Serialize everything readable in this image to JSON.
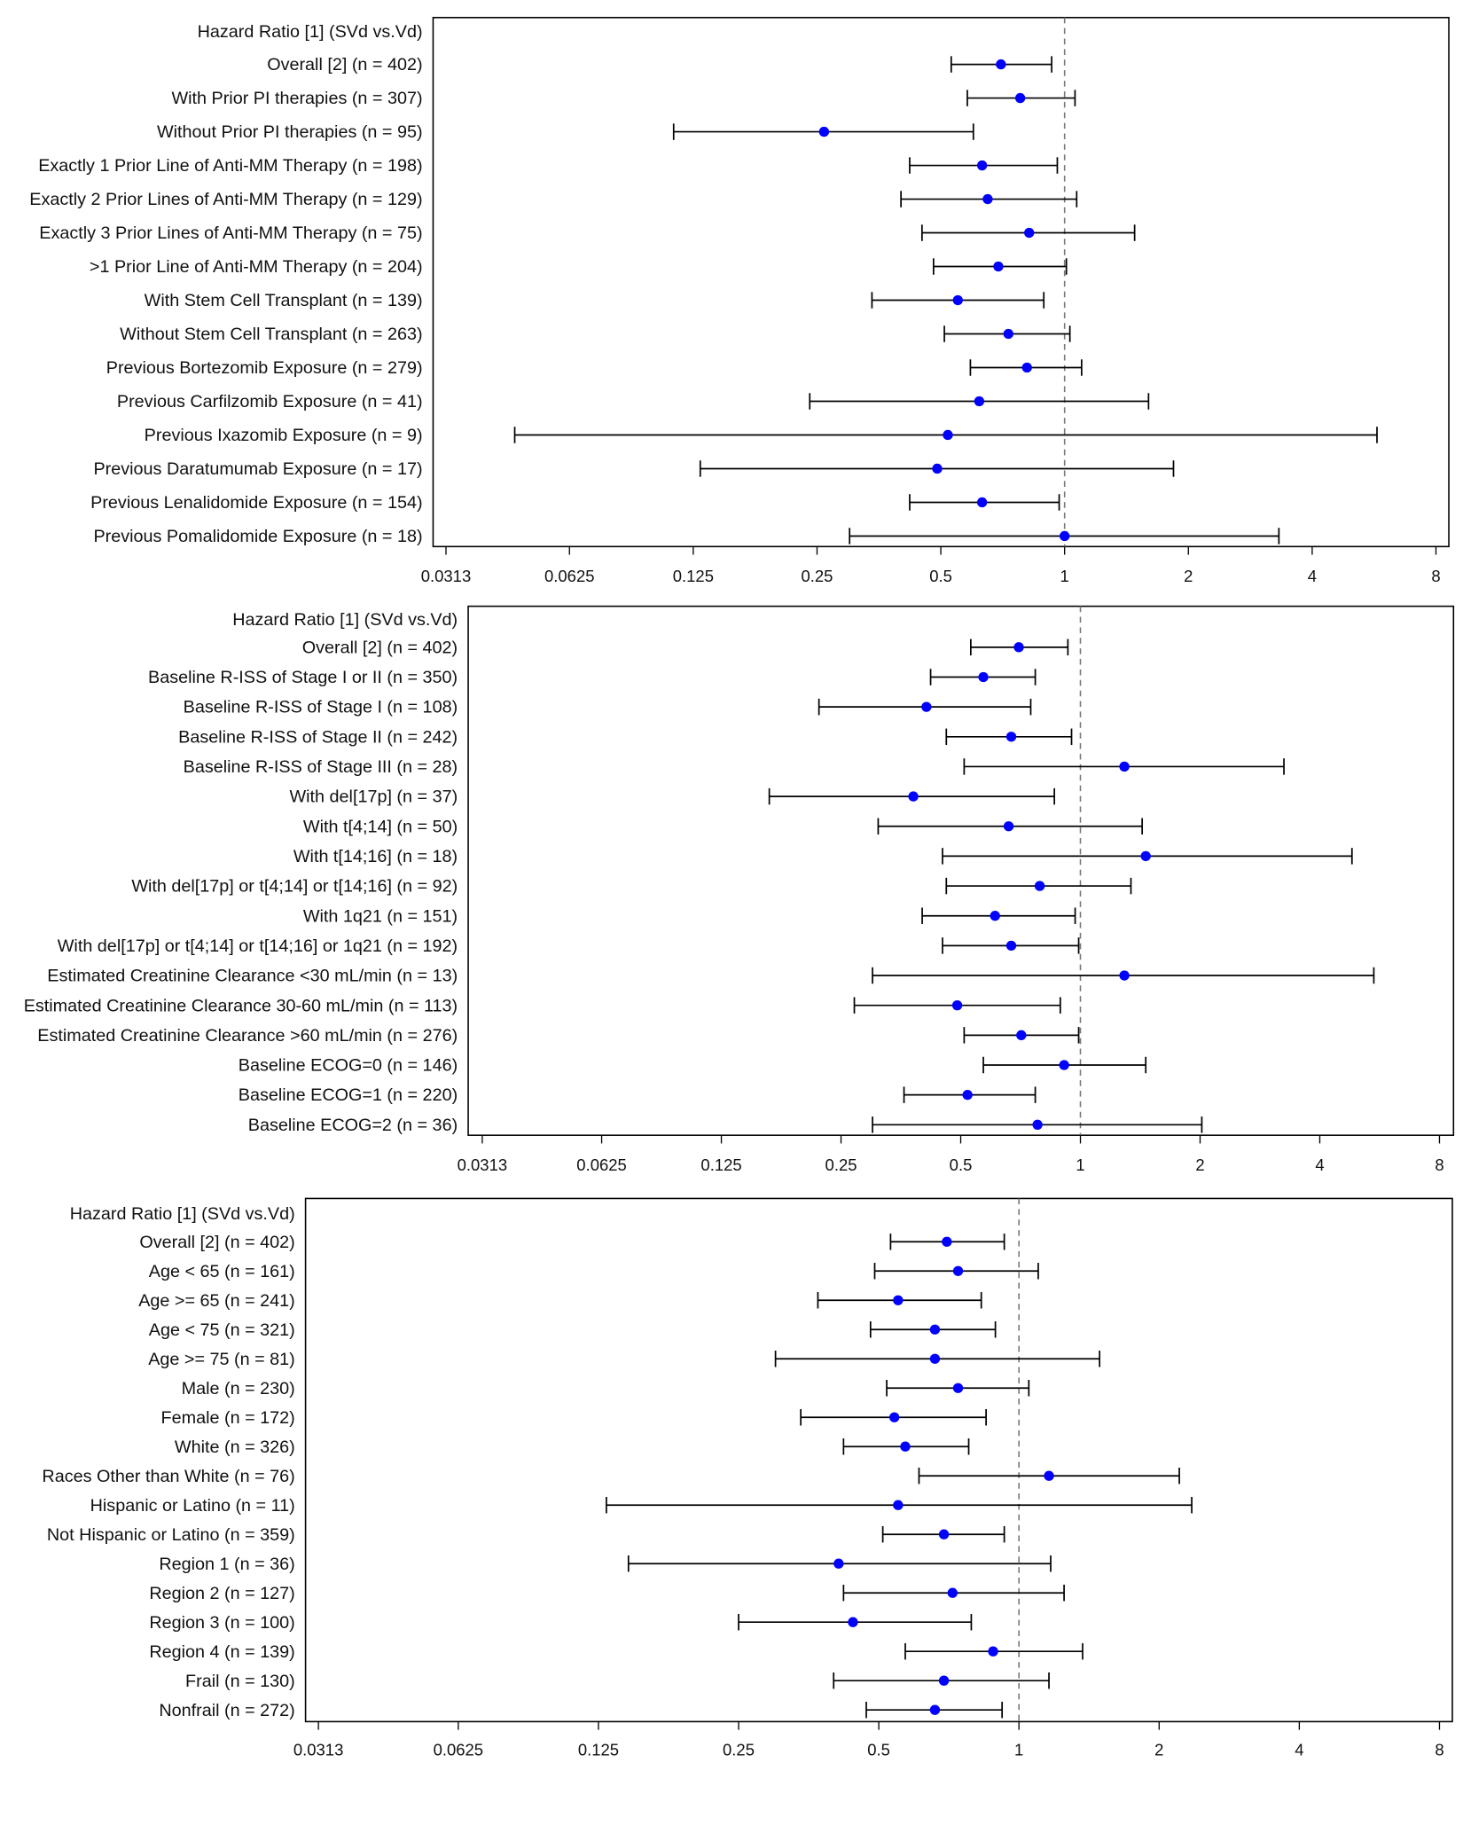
{
  "colors": {
    "point": "#0000ff",
    "whisker": "#000000",
    "reference_line": "#777777"
  },
  "chart_data": [
    {
      "type": "forest",
      "header": "Hazard Ratio [1] (SVd vs.Vd)",
      "x_scale": "log2",
      "xlim": [
        0.0313,
        8
      ],
      "x_ticks": [
        "0.0313",
        "0.0625",
        "0.125",
        "0.25",
        "0.5",
        "1",
        "2",
        "4",
        "8"
      ],
      "reference_line": 1,
      "rows": [
        {
          "label": "Overall [2] (n = 402)",
          "hr": 0.7,
          "lo": 0.53,
          "hi": 0.93
        },
        {
          "label": "With Prior PI therapies (n = 307)",
          "hr": 0.78,
          "lo": 0.58,
          "hi": 1.06
        },
        {
          "label": "Without Prior PI therapies (n = 95)",
          "hr": 0.26,
          "lo": 0.112,
          "hi": 0.6
        },
        {
          "label": "Exactly 1 Prior Line of Anti-MM Therapy (n = 198)",
          "hr": 0.63,
          "lo": 0.42,
          "hi": 0.96
        },
        {
          "label": "Exactly 2 Prior Lines of Anti-MM Therapy (n = 129)",
          "hr": 0.65,
          "lo": 0.4,
          "hi": 1.07
        },
        {
          "label": "Exactly 3 Prior Lines of Anti-MM Therapy (n = 75)",
          "hr": 0.82,
          "lo": 0.45,
          "hi": 1.48
        },
        {
          "label": ">1 Prior Line of Anti-MM Therapy (n = 204)",
          "hr": 0.69,
          "lo": 0.48,
          "hi": 1.01
        },
        {
          "label": "With Stem Cell Transplant (n = 139)",
          "hr": 0.55,
          "lo": 0.34,
          "hi": 0.89
        },
        {
          "label": "Without Stem Cell Transplant (n = 263)",
          "hr": 0.73,
          "lo": 0.51,
          "hi": 1.03
        },
        {
          "label": "Previous Bortezomib Exposure  (n = 279)",
          "hr": 0.81,
          "lo": 0.59,
          "hi": 1.1
        },
        {
          "label": "Previous Carfilzomib Exposure (n = 41)",
          "hr": 0.62,
          "lo": 0.24,
          "hi": 1.6
        },
        {
          "label": "Previous Ixazomib Exposure (n = 9)",
          "hr": 0.52,
          "lo": 0.046,
          "hi": 5.75
        },
        {
          "label": "Previous Daratumumab Exposure (n = 17)",
          "hr": 0.49,
          "lo": 0.13,
          "hi": 1.84
        },
        {
          "label": "Previous Lenalidomide Exposure (n = 154)",
          "hr": 0.63,
          "lo": 0.42,
          "hi": 0.97
        },
        {
          "label": "Previous Pomalidomide Exposure (n = 18)",
          "hr": 1.0,
          "lo": 0.3,
          "hi": 3.32
        }
      ]
    },
    {
      "type": "forest",
      "header": "Hazard Ratio [1] (SVd vs.Vd)",
      "x_scale": "log2",
      "xlim": [
        0.0313,
        8
      ],
      "x_ticks": [
        "0.0313",
        "0.0625",
        "0.125",
        "0.25",
        "0.5",
        "1",
        "2",
        "4",
        "8"
      ],
      "reference_line": 1,
      "rows": [
        {
          "label": "Overall [2] (n = 402)",
          "hr": 0.7,
          "lo": 0.53,
          "hi": 0.93
        },
        {
          "label": "Baseline R-ISS of Stage I or II (n = 350)",
          "hr": 0.57,
          "lo": 0.42,
          "hi": 0.77
        },
        {
          "label": "Baseline R-ISS of Stage I (n = 108)",
          "hr": 0.41,
          "lo": 0.22,
          "hi": 0.75
        },
        {
          "label": "Baseline R-ISS of Stage II (n = 242)",
          "hr": 0.67,
          "lo": 0.46,
          "hi": 0.95
        },
        {
          "label": "Baseline R-ISS of Stage III (n = 28)",
          "hr": 1.29,
          "lo": 0.51,
          "hi": 3.25
        },
        {
          "label": "With del[17p]  (n = 37)",
          "hr": 0.38,
          "lo": 0.165,
          "hi": 0.86
        },
        {
          "label": "With t[4;14]  (n = 50)",
          "hr": 0.66,
          "lo": 0.31,
          "hi": 1.43
        },
        {
          "label": "With t[14;16] (n = 18)",
          "hr": 1.46,
          "lo": 0.45,
          "hi": 4.82
        },
        {
          "label": "With del[17p] or t[4;14] or t[14;16] (n = 92)",
          "hr": 0.79,
          "lo": 0.46,
          "hi": 1.34
        },
        {
          "label": "With 1q21 (n = 151)",
          "hr": 0.61,
          "lo": 0.4,
          "hi": 0.97
        },
        {
          "label": "With del[17p] or t[4;14] or t[14;16] or 1q21 (n = 192)",
          "hr": 0.67,
          "lo": 0.45,
          "hi": 0.99
        },
        {
          "label": "Estimated Creatinine Clearance <30 mL/min (n = 13)",
          "hr": 1.29,
          "lo": 0.3,
          "hi": 5.47
        },
        {
          "label": "Estimated Creatinine Clearance 30-60 mL/min (n = 113)",
          "hr": 0.49,
          "lo": 0.27,
          "hi": 0.89
        },
        {
          "label": "Estimated Creatinine Clearance >60 mL/min (n = 276)",
          "hr": 0.71,
          "lo": 0.51,
          "hi": 0.99
        },
        {
          "label": "Baseline ECOG=0 (n = 146)",
          "hr": 0.91,
          "lo": 0.57,
          "hi": 1.46
        },
        {
          "label": "Baseline ECOG=1 (n = 220)",
          "hr": 0.52,
          "lo": 0.36,
          "hi": 0.77
        },
        {
          "label": "Baseline ECOG=2 (n = 36)",
          "hr": 0.78,
          "lo": 0.3,
          "hi": 2.02
        }
      ]
    },
    {
      "type": "forest",
      "header": "Hazard Ratio [1] (SVd vs.Vd)",
      "x_scale": "log2",
      "xlim": [
        0.0313,
        8
      ],
      "x_ticks": [
        "0.0313",
        "0.0625",
        "0.125",
        "0.25",
        "0.5",
        "1",
        "2",
        "4",
        "8"
      ],
      "reference_line": 1,
      "rows": [
        {
          "label": "Overall [2] (n = 402)",
          "hr": 0.7,
          "lo": 0.53,
          "hi": 0.93
        },
        {
          "label": "Age < 65 (n = 161)",
          "hr": 0.74,
          "lo": 0.49,
          "hi": 1.1
        },
        {
          "label": "Age >= 65 (n = 241)",
          "hr": 0.55,
          "lo": 0.37,
          "hi": 0.83
        },
        {
          "label": "Age < 75 (n = 321)",
          "hr": 0.66,
          "lo": 0.48,
          "hi": 0.89
        },
        {
          "label": "Age >= 75 (n = 81)",
          "hr": 0.66,
          "lo": 0.3,
          "hi": 1.49
        },
        {
          "label": "Male (n = 230)",
          "hr": 0.74,
          "lo": 0.52,
          "hi": 1.05
        },
        {
          "label": "Female (n = 172)",
          "hr": 0.54,
          "lo": 0.34,
          "hi": 0.85
        },
        {
          "label": "White (n = 326)",
          "hr": 0.57,
          "lo": 0.42,
          "hi": 0.78
        },
        {
          "label": "Races Other than White (n = 76)",
          "hr": 1.16,
          "lo": 0.61,
          "hi": 2.21
        },
        {
          "label": "Hispanic or Latino (n = 11)",
          "hr": 0.55,
          "lo": 0.13,
          "hi": 2.35
        },
        {
          "label": "Not Hispanic or Latino (n = 359)",
          "hr": 0.69,
          "lo": 0.51,
          "hi": 0.93
        },
        {
          "label": "Region 1 (n = 36)",
          "hr": 0.41,
          "lo": 0.145,
          "hi": 1.17
        },
        {
          "label": "Region 2 (n = 127)",
          "hr": 0.72,
          "lo": 0.42,
          "hi": 1.25
        },
        {
          "label": "Region 3 (n = 100)",
          "hr": 0.44,
          "lo": 0.25,
          "hi": 0.79
        },
        {
          "label": "Region 4 (n = 139)",
          "hr": 0.88,
          "lo": 0.57,
          "hi": 1.37
        },
        {
          "label": "Frail (n = 130)",
          "hr": 0.69,
          "lo": 0.4,
          "hi": 1.16
        },
        {
          "label": "Nonfrail (n = 272)",
          "hr": 0.66,
          "lo": 0.47,
          "hi": 0.92
        }
      ]
    }
  ]
}
